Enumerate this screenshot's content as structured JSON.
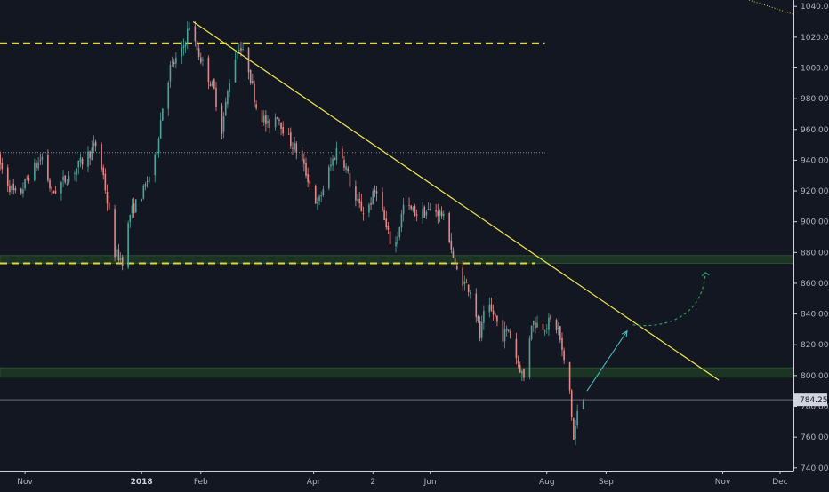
{
  "colors": {
    "background": "#131722",
    "axis_line": "#d1d4dc",
    "candle_up": "#4ea39a",
    "candle_down": "#e08b8b",
    "trendline": "#f2e94e",
    "dashed_level": "#e0d63b",
    "zone_fill": "#1e3a24",
    "zone_border": "#2e5a35",
    "arrow": "#4fc3c8",
    "projection": "#2e9e5e",
    "last_price_line": "#6b6f7a"
  },
  "price_tag": "784.25",
  "chart_data": {
    "type": "candlestick",
    "title": "",
    "xlabel": "",
    "ylabel": "",
    "ylim": [
      737,
      1043
    ],
    "xlim": [
      "2017-10-18",
      "2018-12-28"
    ],
    "grid": false,
    "yticks": [
      740,
      760,
      780,
      800,
      820,
      840,
      860,
      880,
      900,
      920,
      940,
      960,
      980,
      1000,
      1020,
      1040
    ],
    "ytick_labels": [
      "740.00",
      "760.00",
      "780.00",
      "800.00",
      "820.00",
      "840.00",
      "860.00",
      "880.00",
      "900.00",
      "920.00",
      "940.00",
      "960.00",
      "980.00",
      "1000.00",
      "1020.00",
      "1040.00"
    ],
    "xticks": [
      {
        "label": "Nov",
        "date": "2017-11-01",
        "bold": false
      },
      {
        "label": "2018",
        "date": "2018-01-01",
        "bold": true
      },
      {
        "label": "Feb",
        "date": "2018-02-01",
        "bold": false
      },
      {
        "label": "Apr",
        "date": "2018-04-01",
        "bold": false
      },
      {
        "label": "2",
        "date": "2018-05-02",
        "bold": false
      },
      {
        "label": "Jun",
        "date": "2018-06-01",
        "bold": false
      },
      {
        "label": "Aug",
        "date": "2018-08-01",
        "bold": false
      },
      {
        "label": "Sep",
        "date": "2018-09-01",
        "bold": false
      },
      {
        "label": "Nov",
        "date": "2018-11-01",
        "bold": false
      },
      {
        "label": "Dec",
        "date": "2018-12-01",
        "bold": false
      }
    ],
    "price_path": [
      [
        "2017-10-18",
        940
      ],
      [
        "2017-10-23",
        925
      ],
      [
        "2017-10-28",
        915
      ],
      [
        "2017-11-03",
        930
      ],
      [
        "2017-11-10",
        942
      ],
      [
        "2017-11-15",
        918
      ],
      [
        "2017-11-20",
        925
      ],
      [
        "2017-11-28",
        935
      ],
      [
        "2017-12-05",
        945
      ],
      [
        "2017-12-08",
        950
      ],
      [
        "2017-12-12",
        930
      ],
      [
        "2017-12-18",
        880
      ],
      [
        "2017-12-22",
        875
      ],
      [
        "2017-12-26",
        905
      ],
      [
        "2018-01-02",
        920
      ],
      [
        "2018-01-08",
        940
      ],
      [
        "2018-01-12",
        975
      ],
      [
        "2018-01-16",
        1000
      ],
      [
        "2018-01-22",
        1010
      ],
      [
        "2018-01-26",
        1028
      ],
      [
        "2018-01-29",
        1015
      ],
      [
        "2018-02-02",
        1003
      ],
      [
        "2018-02-08",
        985
      ],
      [
        "2018-02-12",
        960
      ],
      [
        "2018-02-17",
        1000
      ],
      [
        "2018-02-21",
        1015
      ],
      [
        "2018-02-26",
        1000
      ],
      [
        "2018-03-02",
        975
      ],
      [
        "2018-03-08",
        962
      ],
      [
        "2018-03-13",
        970
      ],
      [
        "2018-03-18",
        955
      ],
      [
        "2018-03-24",
        945
      ],
      [
        "2018-03-30",
        925
      ],
      [
        "2018-04-03",
        910
      ],
      [
        "2018-04-08",
        930
      ],
      [
        "2018-04-14",
        950
      ],
      [
        "2018-04-18",
        935
      ],
      [
        "2018-04-22",
        915
      ],
      [
        "2018-04-28",
        905
      ],
      [
        "2018-05-04",
        922
      ],
      [
        "2018-05-09",
        895
      ],
      [
        "2018-05-13",
        880
      ],
      [
        "2018-05-18",
        910
      ],
      [
        "2018-05-26",
        905
      ],
      [
        "2018-06-03",
        908
      ],
      [
        "2018-06-07",
        905
      ],
      [
        "2018-06-11",
        890
      ],
      [
        "2018-06-14",
        870
      ],
      [
        "2018-06-19",
        860
      ],
      [
        "2018-06-23",
        855
      ],
      [
        "2018-06-27",
        825
      ],
      [
        "2018-06-30",
        845
      ],
      [
        "2018-07-04",
        840
      ],
      [
        "2018-07-09",
        826
      ],
      [
        "2018-07-12",
        830
      ],
      [
        "2018-07-16",
        812
      ],
      [
        "2018-07-20",
        798
      ],
      [
        "2018-07-24",
        835
      ],
      [
        "2018-07-30",
        832
      ],
      [
        "2018-08-03",
        835
      ],
      [
        "2018-08-07",
        830
      ],
      [
        "2018-08-10",
        808
      ],
      [
        "2018-08-13",
        790
      ],
      [
        "2018-08-15",
        758
      ],
      [
        "2018-08-17",
        775
      ],
      [
        "2018-08-20",
        784
      ]
    ],
    "annotations": {
      "resistance_dashed": {
        "price": 1016,
        "from": "2017-10-18",
        "to": "2018-07-31"
      },
      "support_dashed": {
        "price": 873,
        "from": "2017-10-18",
        "to": "2018-07-26"
      },
      "dotted_level": {
        "price": 945,
        "from": "2017-10-18",
        "to": "2018-07-31"
      },
      "zone_upper": {
        "low": 873,
        "high": 878
      },
      "zone_lower": {
        "low": 799,
        "high": 805,
        "to": "2018-12-24"
      },
      "trendline": {
        "from": [
          "2018-01-28",
          1030
        ],
        "to": [
          "2018-10-30",
          797
        ]
      },
      "arrow": {
        "from": [
          "2018-08-22",
          790
        ],
        "to": [
          "2018-09-12",
          829
        ]
      },
      "projection": {
        "from": [
          "2018-09-15",
          833
        ],
        "to": [
          "2018-10-23",
          867
        ]
      },
      "last_price": 784.25
    }
  }
}
